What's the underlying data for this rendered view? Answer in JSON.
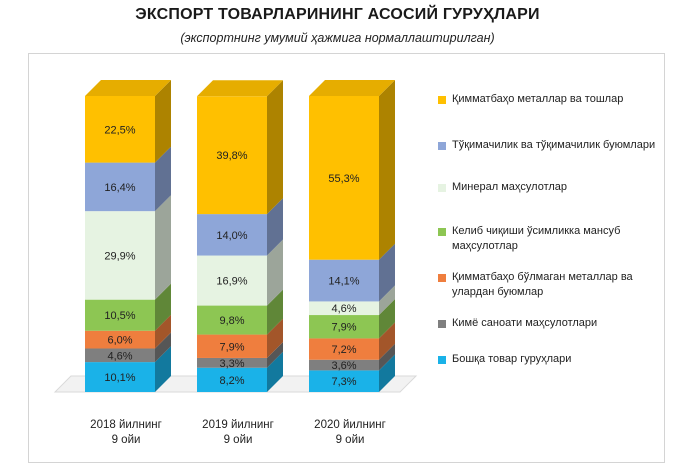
{
  "chart_data": {
    "type": "bar",
    "stacked": true,
    "three_d": true,
    "title": "ЭКСПОРТ ТОВАРЛАРИНИНГ АСОСИЙ ГУРУҲЛАРИ",
    "subtitle": "(экспортнинг умумий ҳажмига нормаллаштирилган)",
    "categories": [
      "2018 йилнинг\n9 ойи",
      "2019 йилнинг\n9 ойи",
      "2020 йилнинг\n9 ойи"
    ],
    "ylim": [
      0,
      100
    ],
    "legend_position": "right",
    "series": [
      {
        "name": "Бошқа товар гуруҳлари",
        "color": "#1ab2e8",
        "values": [
          10.1,
          8.2,
          7.3
        ],
        "labels": [
          "10,1%",
          "8,2%",
          "7,3%"
        ]
      },
      {
        "name": "Кимё саноати маҳсулотлари",
        "color": "#7f7f7f",
        "values": [
          4.6,
          3.3,
          3.6
        ],
        "labels": [
          "4,6%",
          "3,3%",
          "3,6%"
        ]
      },
      {
        "name": "Қимматбаҳо бўлмаган металлар ва улардан буюмлар",
        "color": "#ef7e3e",
        "values": [
          6.0,
          7.9,
          7.2
        ],
        "labels": [
          "6,0%",
          "7,9%",
          "7,2%"
        ]
      },
      {
        "name": "Келиб чиқиши ўсимликка мансуб маҳсулотлар",
        "color": "#8dc653",
        "values": [
          10.5,
          9.8,
          7.9
        ],
        "labels": [
          "10,5%",
          "9,8%",
          "7,9%"
        ]
      },
      {
        "name": "Минерал маҳсулотлар",
        "color": "#e6f3e2",
        "values": [
          29.9,
          16.9,
          4.6
        ],
        "labels": [
          "29,9%",
          "16,9%",
          "4,6%"
        ]
      },
      {
        "name": "Тўқимачилик ва тўқимачилик буюмлари",
        "color": "#8ea6d8",
        "values": [
          16.4,
          14.0,
          14.1
        ],
        "labels": [
          "16,4%",
          "14,0%",
          "14,1%"
        ]
      },
      {
        "name": "Қимматбаҳо металлар ва тошлар",
        "color": "#ffc000",
        "values": [
          22.5,
          39.8,
          55.3
        ],
        "labels": [
          "22,5%",
          "39,8%",
          "55,3%"
        ]
      }
    ]
  }
}
